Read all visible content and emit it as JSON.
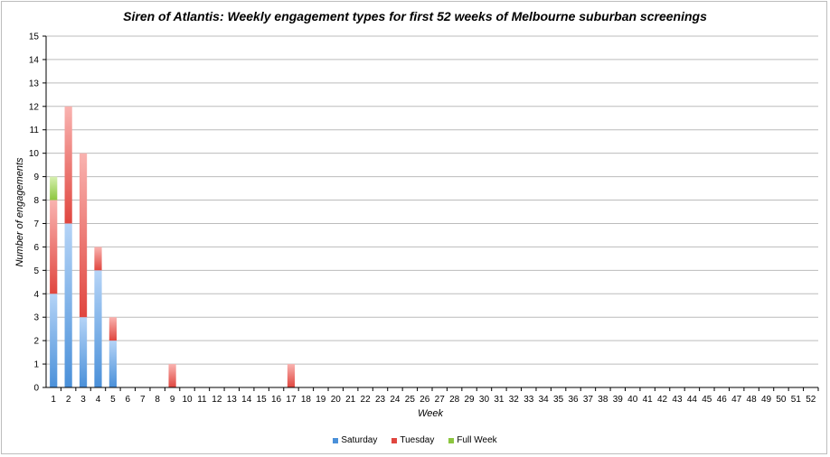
{
  "chart_data": {
    "type": "bar",
    "stacked": true,
    "title": "Siren of Atlantis: Weekly engagement types for first 52 weeks of Melbourne suburban screenings",
    "xlabel": "Week",
    "ylabel": "Number of engagements",
    "ylim": [
      0,
      15
    ],
    "yticks": [
      "0",
      "1",
      "2",
      "3",
      "4",
      "5",
      "6",
      "7",
      "8",
      "9",
      "10",
      "11",
      "12",
      "13",
      "14",
      "15"
    ],
    "grid": true,
    "legend_position": "bottom",
    "categories": [
      "1",
      "2",
      "3",
      "4",
      "5",
      "6",
      "7",
      "8",
      "9",
      "10",
      "11",
      "12",
      "13",
      "14",
      "15",
      "16",
      "17",
      "18",
      "19",
      "20",
      "21",
      "22",
      "23",
      "24",
      "25",
      "26",
      "27",
      "28",
      "29",
      "30",
      "31",
      "32",
      "33",
      "34",
      "35",
      "36",
      "37",
      "38",
      "39",
      "40",
      "41",
      "42",
      "43",
      "44",
      "45",
      "46",
      "47",
      "48",
      "49",
      "50",
      "51",
      "52"
    ],
    "series": [
      {
        "name": "Saturday",
        "color": "#4a90d9",
        "color_light": "#b5d4f7",
        "values": [
          4,
          7,
          3,
          5,
          2,
          0,
          0,
          0,
          0,
          0,
          0,
          0,
          0,
          0,
          0,
          0,
          0,
          0,
          0,
          0,
          0,
          0,
          0,
          0,
          0,
          0,
          0,
          0,
          0,
          0,
          0,
          0,
          0,
          0,
          0,
          0,
          0,
          0,
          0,
          0,
          0,
          0,
          0,
          0,
          0,
          0,
          0,
          0,
          0,
          0,
          0,
          0
        ]
      },
      {
        "name": "Tuesday",
        "color": "#e0463f",
        "color_light": "#f9b3b0",
        "values": [
          4,
          5,
          7,
          1,
          1,
          0,
          0,
          0,
          1,
          0,
          0,
          0,
          0,
          0,
          0,
          0,
          1,
          0,
          0,
          0,
          0,
          0,
          0,
          0,
          0,
          0,
          0,
          0,
          0,
          0,
          0,
          0,
          0,
          0,
          0,
          0,
          0,
          0,
          0,
          0,
          0,
          0,
          0,
          0,
          0,
          0,
          0,
          0,
          0,
          0,
          0,
          0
        ]
      },
      {
        "name": "Full Week",
        "color": "#8cc63f",
        "color_light": "#d6f0b0",
        "values": [
          1,
          0,
          0,
          0,
          0,
          0,
          0,
          0,
          0,
          0,
          0,
          0,
          0,
          0,
          0,
          0,
          0,
          0,
          0,
          0,
          0,
          0,
          0,
          0,
          0,
          0,
          0,
          0,
          0,
          0,
          0,
          0,
          0,
          0,
          0,
          0,
          0,
          0,
          0,
          0,
          0,
          0,
          0,
          0,
          0,
          0,
          0,
          0,
          0,
          0,
          0,
          0
        ]
      }
    ]
  }
}
